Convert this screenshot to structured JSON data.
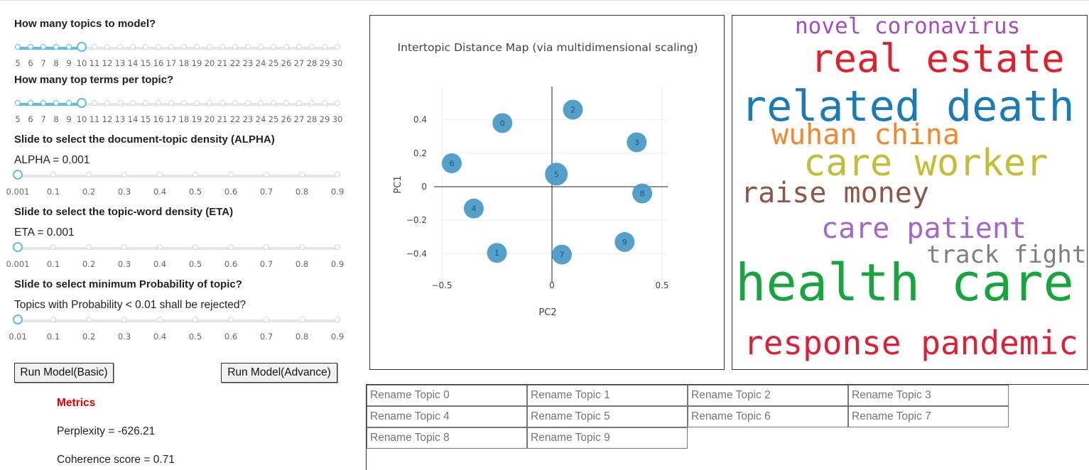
{
  "controls": {
    "topics_label": "How many topics to model?",
    "terms_label": "How many top terms per topic?",
    "alpha_label": "Slide to select the document-topic density (ALPHA)",
    "alpha_value": "ALPHA = 0.001",
    "eta_label": "Slide to select the topic-word density (ETA)",
    "eta_value": "ETA = 0.001",
    "prob_label": "Slide to select minimum Probability of topic?",
    "prob_value": "Topics with Probability < 0.01 shall be rejected?",
    "int_ticks": [
      "5",
      "6",
      "7",
      "8",
      "9",
      "10",
      "11",
      "12",
      "13",
      "14",
      "15",
      "16",
      "17",
      "18",
      "19",
      "20",
      "21",
      "22",
      "23",
      "24",
      "25",
      "26",
      "27",
      "28",
      "29",
      "30"
    ],
    "frac_ticks_a": [
      "0.001",
      "0.1",
      "0.2",
      "0.3",
      "0.4",
      "0.5",
      "0.6",
      "0.7",
      "0.8",
      "0.9"
    ],
    "frac_ticks_b": [
      "0.01",
      "0.1",
      "0.2",
      "0.3",
      "0.4",
      "0.5",
      "0.6",
      "0.7",
      "0.8",
      "0.9"
    ],
    "topics_selected": 10,
    "terms_selected": 10,
    "alpha_selected": 0.001,
    "eta_selected": 0.001,
    "prob_selected": 0.01
  },
  "buttons": {
    "run_basic": "Run Model(Basic)",
    "run_advance": "Run Model(Advance)"
  },
  "metrics": {
    "title": "Metrics",
    "perplexity": "Perplexity = -626.21",
    "coherence": "Coherence score = 0.71"
  },
  "chart_data": {
    "type": "scatter",
    "title": "Intertopic Distance Map (via multidimensional scaling)",
    "xlabel": "PC2",
    "ylabel": "PC1",
    "xlim": [
      -0.5,
      0.5
    ],
    "ylim": [
      -0.4,
      0.4
    ],
    "xticks": [
      "−0.5",
      "0",
      "0.5"
    ],
    "yticks": [
      "0.4",
      "0.2",
      "0",
      "−0.2",
      "−0.4"
    ],
    "point_color": "#4a9cc8",
    "points": [
      {
        "label": "0",
        "x": -0.225,
        "y": 0.38
      },
      {
        "label": "1",
        "x": -0.25,
        "y": -0.395
      },
      {
        "label": "2",
        "x": 0.095,
        "y": 0.46
      },
      {
        "label": "3",
        "x": 0.385,
        "y": 0.265
      },
      {
        "label": "4",
        "x": -0.355,
        "y": -0.13
      },
      {
        "label": "5",
        "x": 0.02,
        "y": 0.075
      },
      {
        "label": "6",
        "x": -0.455,
        "y": 0.14
      },
      {
        "label": "7",
        "x": 0.045,
        "y": -0.405
      },
      {
        "label": "8",
        "x": 0.41,
        "y": -0.04
      },
      {
        "label": "9",
        "x": 0.33,
        "y": -0.33
      }
    ]
  },
  "wordcloud": {
    "words": [
      {
        "text": "novel coronavirus",
        "color": "#a24fbd"
      },
      {
        "text": "real estate",
        "color": "#e0202c"
      },
      {
        "text": "related death",
        "color": "#1a7bb5"
      },
      {
        "text": "wuhan china",
        "color": "#f5872a"
      },
      {
        "text": "care worker",
        "color": "#c4bd36"
      },
      {
        "text": "raise money",
        "color": "#8c564b"
      },
      {
        "text": "care patient",
        "color": "#a366c9"
      },
      {
        "text": "track fight",
        "color": "#7f7f7f"
      },
      {
        "text": "health care",
        "color": "#17a53e"
      },
      {
        "text": "response pandemic",
        "color": "#e01e35"
      }
    ]
  },
  "rename_placeholders": [
    "Rename Topic 0",
    "Rename Topic 1",
    "Rename Topic 2",
    "Rename Topic 3",
    "Rename Topic 4",
    "Rename Topic 5",
    "Rename Topic 6",
    "Rename Topic 7",
    "Rename Topic 8",
    "Rename Topic 9"
  ]
}
